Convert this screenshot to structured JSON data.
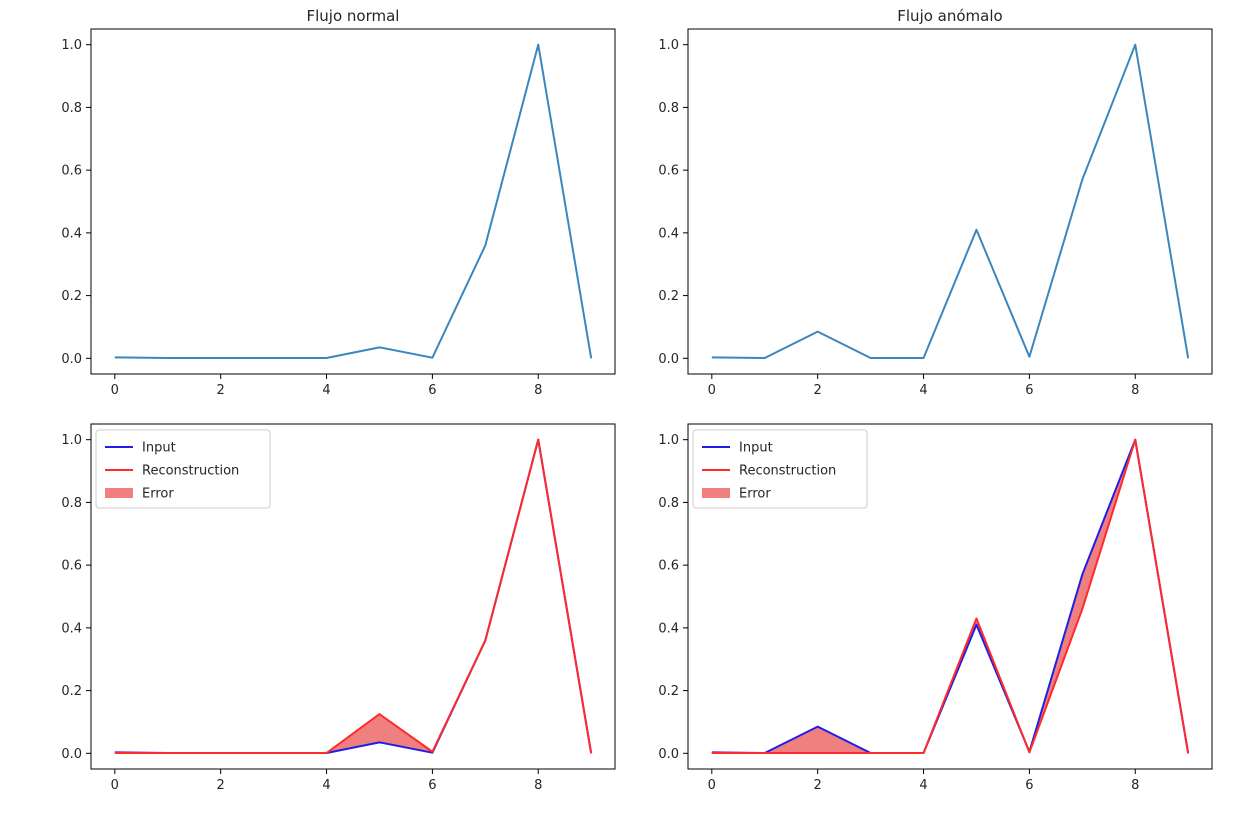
{
  "chart_data": [
    {
      "type": "line",
      "title": "Flujo normal",
      "x": [
        0,
        1,
        2,
        3,
        4,
        5,
        6,
        7,
        8,
        9
      ],
      "series": [
        {
          "name": "",
          "color": "#3a87bf",
          "values": [
            0.003,
            0.001,
            0.001,
            0.001,
            0.001,
            0.035,
            0.002,
            0.36,
            1.0,
            0.0
          ]
        }
      ],
      "xlim": [
        -0.45,
        9.45
      ],
      "ylim": [
        -0.05,
        1.05
      ],
      "xticks": [
        "0",
        "2",
        "4",
        "6",
        "8"
      ],
      "yticks": [
        "0.0",
        "0.2",
        "0.4",
        "0.6",
        "0.8",
        "1.0"
      ],
      "xlabel": "",
      "ylabel": "",
      "grid": false
    },
    {
      "type": "line",
      "title": "Flujo anómalo",
      "x": [
        0,
        1,
        2,
        3,
        4,
        5,
        6,
        7,
        8,
        9
      ],
      "series": [
        {
          "name": "",
          "color": "#3a87bf",
          "values": [
            0.003,
            0.001,
            0.085,
            0.001,
            0.001,
            0.41,
            0.005,
            0.57,
            1.0,
            0.0
          ]
        }
      ],
      "xlim": [
        -0.45,
        9.45
      ],
      "ylim": [
        -0.05,
        1.05
      ],
      "xticks": [
        "0",
        "2",
        "4",
        "6",
        "8"
      ],
      "yticks": [
        "0.0",
        "0.2",
        "0.4",
        "0.6",
        "0.8",
        "1.0"
      ],
      "xlabel": "",
      "ylabel": "",
      "grid": false
    },
    {
      "type": "line",
      "title": "",
      "x": [
        0,
        1,
        2,
        3,
        4,
        5,
        6,
        7,
        8,
        9
      ],
      "series": [
        {
          "name": "Input",
          "color": "#1f1fe8",
          "values": [
            0.003,
            0.001,
            0.001,
            0.001,
            0.001,
            0.035,
            0.002,
            0.36,
            1.0,
            0.0
          ]
        },
        {
          "name": "Reconstruction",
          "color": "#ff2a2a",
          "values": [
            0.001,
            0.001,
            0.001,
            0.001,
            0.001,
            0.125,
            0.005,
            0.36,
            1.0,
            0.0
          ]
        }
      ],
      "fill": {
        "name": "Error",
        "color": "#f08080",
        "between": [
          "Input",
          "Reconstruction"
        ]
      },
      "legend": {
        "placement": "upper-left",
        "entries": [
          "Input",
          "Reconstruction",
          "Error"
        ]
      },
      "xlim": [
        -0.45,
        9.45
      ],
      "ylim": [
        -0.05,
        1.05
      ],
      "xticks": [
        "0",
        "2",
        "4",
        "6",
        "8"
      ],
      "yticks": [
        "0.0",
        "0.2",
        "0.4",
        "0.6",
        "0.8",
        "1.0"
      ],
      "xlabel": "",
      "ylabel": "",
      "grid": false
    },
    {
      "type": "line",
      "title": "",
      "x": [
        0,
        1,
        2,
        3,
        4,
        5,
        6,
        7,
        8,
        9
      ],
      "series": [
        {
          "name": "Input",
          "color": "#1f1fe8",
          "values": [
            0.003,
            0.001,
            0.085,
            0.001,
            0.001,
            0.41,
            0.005,
            0.57,
            1.0,
            0.0
          ]
        },
        {
          "name": "Reconstruction",
          "color": "#ff2a2a",
          "values": [
            0.001,
            0.001,
            0.001,
            0.001,
            0.001,
            0.43,
            0.003,
            0.46,
            1.0,
            0.0
          ]
        }
      ],
      "fill": {
        "name": "Error",
        "color": "#f08080",
        "between": [
          "Input",
          "Reconstruction"
        ]
      },
      "legend": {
        "placement": "upper-left",
        "entries": [
          "Input",
          "Reconstruction",
          "Error"
        ]
      },
      "xlim": [
        -0.45,
        9.45
      ],
      "ylim": [
        -0.05,
        1.05
      ],
      "xticks": [
        "0",
        "2",
        "4",
        "6",
        "8"
      ],
      "yticks": [
        "0.0",
        "0.2",
        "0.4",
        "0.6",
        "0.8",
        "1.0"
      ],
      "xlabel": "",
      "ylabel": "",
      "grid": false
    }
  ]
}
